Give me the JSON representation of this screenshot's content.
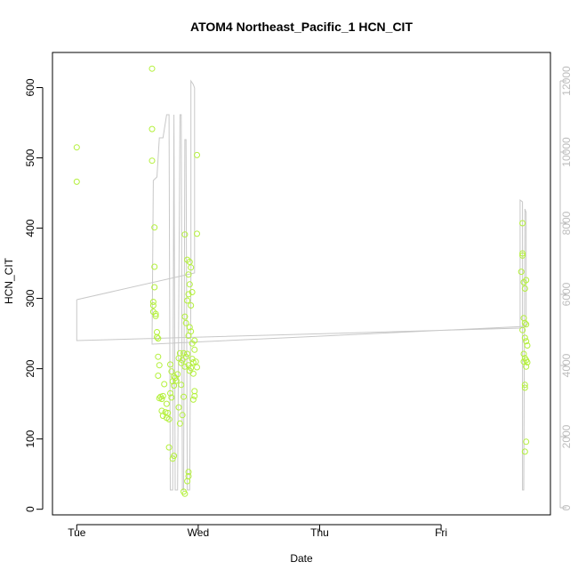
{
  "chart_data": {
    "type": "scatter",
    "title": "ATOM4 Northeast_Pacific_1 HCN_CIT",
    "xlabel": "Date",
    "ylabel": "HCN_CIT",
    "x_ticks": [
      "Tue",
      "Wed",
      "Thu",
      "Fri"
    ],
    "x_tick_days": [
      0,
      1,
      2,
      3
    ],
    "xlim_days": [
      -0.2,
      3.9
    ],
    "ylim": [
      -8,
      650
    ],
    "y_ticks": [
      0,
      100,
      200,
      300,
      400,
      500,
      600
    ],
    "right_ylim": [
      -200,
      12800
    ],
    "right_y_ticks": [
      0,
      2000,
      4000,
      6000,
      8000,
      10000,
      12000
    ],
    "colors": {
      "points": "#b4f03c",
      "line": "#c8c8c8",
      "right_axis": "#bdbdbd",
      "text": "#000000",
      "frame": "#000000"
    },
    "series": [
      {
        "type": "scatter",
        "points": [
          [
            0.0,
            515
          ],
          [
            0.0,
            466
          ],
          [
            0.62,
            627
          ],
          [
            0.62,
            541
          ],
          [
            0.62,
            496
          ],
          [
            0.64,
            401
          ],
          [
            0.64,
            345
          ],
          [
            0.64,
            316
          ],
          [
            0.63,
            295
          ],
          [
            0.63,
            290
          ],
          [
            0.63,
            281
          ],
          [
            0.65,
            278
          ],
          [
            0.65,
            275
          ],
          [
            0.66,
            252
          ],
          [
            0.66,
            245
          ],
          [
            0.67,
            243
          ],
          [
            0.67,
            217
          ],
          [
            0.68,
            205
          ],
          [
            0.67,
            190
          ],
          [
            0.68,
            158
          ],
          [
            0.69,
            160
          ],
          [
            0.7,
            157
          ],
          [
            0.71,
            161
          ],
          [
            0.72,
            178
          ],
          [
            0.7,
            140
          ],
          [
            0.71,
            133
          ],
          [
            0.73,
            138
          ],
          [
            0.74,
            150
          ],
          [
            0.74,
            130
          ],
          [
            0.75,
            137
          ],
          [
            0.76,
            128
          ],
          [
            0.77,
            165
          ],
          [
            0.78,
            159
          ],
          [
            0.77,
            206
          ],
          [
            0.78,
            196
          ],
          [
            0.79,
            182
          ],
          [
            0.8,
            189
          ],
          [
            0.8,
            176
          ],
          [
            0.81,
            187
          ],
          [
            0.82,
            183
          ],
          [
            0.83,
            192
          ],
          [
            0.84,
            215
          ],
          [
            0.85,
            222
          ],
          [
            0.86,
            208
          ],
          [
            0.87,
            212
          ],
          [
            0.88,
            222
          ],
          [
            0.89,
            203
          ],
          [
            0.9,
            217
          ],
          [
            0.91,
            221
          ],
          [
            0.92,
            205
          ],
          [
            0.93,
            197
          ],
          [
            0.94,
            201
          ],
          [
            0.95,
            214
          ],
          [
            0.96,
            209
          ],
          [
            0.97,
            227
          ],
          [
            0.98,
            210
          ],
          [
            0.99,
            202
          ],
          [
            0.95,
            236
          ],
          [
            0.97,
            240
          ],
          [
            0.96,
            193
          ],
          [
            0.97,
            168
          ],
          [
            0.97,
            161
          ],
          [
            0.96,
            156
          ],
          [
            0.94,
            253
          ],
          [
            0.93,
            259
          ],
          [
            0.92,
            247
          ],
          [
            0.9,
            265
          ],
          [
            0.89,
            274
          ],
          [
            0.91,
            297
          ],
          [
            0.92,
            306
          ],
          [
            0.94,
            290
          ],
          [
            0.95,
            309
          ],
          [
            0.93,
            320
          ],
          [
            0.92,
            334
          ],
          [
            0.94,
            344
          ],
          [
            0.93,
            352
          ],
          [
            0.91,
            355
          ],
          [
            0.89,
            391
          ],
          [
            0.99,
            392
          ],
          [
            0.99,
            504
          ],
          [
            0.76,
            88
          ],
          [
            0.79,
            72
          ],
          [
            0.8,
            76
          ],
          [
            0.88,
            25
          ],
          [
            0.89,
            22
          ],
          [
            0.91,
            40
          ],
          [
            0.92,
            47
          ],
          [
            0.92,
            53
          ],
          [
            0.85,
            122
          ],
          [
            0.84,
            145
          ],
          [
            0.86,
            177
          ],
          [
            0.88,
            160
          ],
          [
            0.87,
            134
          ],
          [
            3.67,
            407
          ],
          [
            3.67,
            364
          ],
          [
            3.67,
            361
          ],
          [
            3.66,
            338
          ],
          [
            3.68,
            323
          ],
          [
            3.69,
            314
          ],
          [
            3.7,
            326
          ],
          [
            3.68,
            272
          ],
          [
            3.69,
            265
          ],
          [
            3.7,
            263
          ],
          [
            3.67,
            255
          ],
          [
            3.69,
            244
          ],
          [
            3.7,
            239
          ],
          [
            3.71,
            233
          ],
          [
            3.68,
            221
          ],
          [
            3.69,
            215
          ],
          [
            3.7,
            212
          ],
          [
            3.71,
            209
          ],
          [
            3.68,
            210
          ],
          [
            3.7,
            203
          ],
          [
            3.69,
            177
          ],
          [
            3.69,
            173
          ],
          [
            3.7,
            96
          ],
          [
            3.69,
            82
          ]
        ]
      },
      {
        "type": "line",
        "axis": "right",
        "points": [
          [
            0.0,
            5850
          ],
          [
            0.0,
            4700
          ],
          [
            3.65,
            5050
          ],
          [
            3.65,
            8650
          ],
          [
            3.67,
            8600
          ],
          [
            3.67,
            500
          ],
          [
            3.68,
            500
          ],
          [
            3.69,
            8400
          ],
          [
            3.7,
            8300
          ],
          [
            3.7,
            5100
          ],
          [
            0.62,
            4600
          ],
          [
            0.63,
            9200
          ],
          [
            0.66,
            9300
          ],
          [
            0.68,
            10400
          ],
          [
            0.71,
            10400
          ],
          [
            0.74,
            11050
          ],
          [
            0.76,
            11050
          ],
          [
            0.77,
            500
          ],
          [
            0.79,
            500
          ],
          [
            0.8,
            11050
          ],
          [
            0.81,
            500
          ],
          [
            0.83,
            500
          ],
          [
            0.85,
            11050
          ],
          [
            0.86,
            11050
          ],
          [
            0.87,
            500
          ],
          [
            0.88,
            500
          ],
          [
            0.89,
            10350
          ],
          [
            0.9,
            10350
          ],
          [
            0.91,
            500
          ],
          [
            0.93,
            500
          ],
          [
            0.94,
            6550
          ],
          [
            0.94,
            12000
          ],
          [
            0.96,
            11900
          ],
          [
            0.97,
            11800
          ],
          [
            0.97,
            6600
          ],
          [
            0.0,
            5850
          ]
        ]
      }
    ]
  }
}
